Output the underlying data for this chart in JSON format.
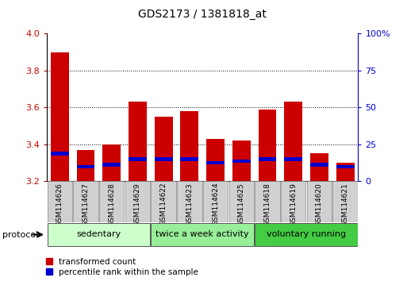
{
  "title": "GDS2173 / 1381818_at",
  "categories": [
    "GSM114626",
    "GSM114627",
    "GSM114628",
    "GSM114629",
    "GSM114622",
    "GSM114623",
    "GSM114624",
    "GSM114625",
    "GSM114618",
    "GSM114619",
    "GSM114620",
    "GSM114621"
  ],
  "red_values": [
    3.9,
    3.37,
    3.4,
    3.63,
    3.55,
    3.58,
    3.43,
    3.42,
    3.59,
    3.63,
    3.35,
    3.3
  ],
  "blue_values": [
    3.35,
    3.28,
    3.29,
    3.32,
    3.32,
    3.32,
    3.3,
    3.31,
    3.32,
    3.32,
    3.29,
    3.28
  ],
  "blue_heights": [
    0.018,
    0.018,
    0.018,
    0.018,
    0.018,
    0.018,
    0.018,
    0.018,
    0.018,
    0.018,
    0.018,
    0.018
  ],
  "ymin": 3.2,
  "ymax": 4.0,
  "yticks": [
    3.2,
    3.4,
    3.6,
    3.8,
    4.0
  ],
  "right_yticks": [
    0,
    25,
    50,
    75,
    100
  ],
  "right_ytick_labels": [
    "0",
    "25",
    "50",
    "75",
    "100%"
  ],
  "groups": [
    {
      "label": "sedentary",
      "start": 0,
      "end": 4,
      "color": "#ccffcc"
    },
    {
      "label": "twice a week activity",
      "start": 4,
      "end": 8,
      "color": "#99ee99"
    },
    {
      "label": "voluntary running",
      "start": 8,
      "end": 12,
      "color": "#44cc44"
    }
  ],
  "protocol_label": "protocol",
  "bar_width": 0.7,
  "bar_color_red": "#cc0000",
  "bar_color_blue": "#0000cc",
  "base": 3.2,
  "legend_labels": [
    "transformed count",
    "percentile rank within the sample"
  ],
  "tick_color_left": "#cc0000",
  "tick_color_right": "#0000cc",
  "bar_bg_color": "#d0d0d0",
  "xticklabel_box_color": "#d0d0d0"
}
